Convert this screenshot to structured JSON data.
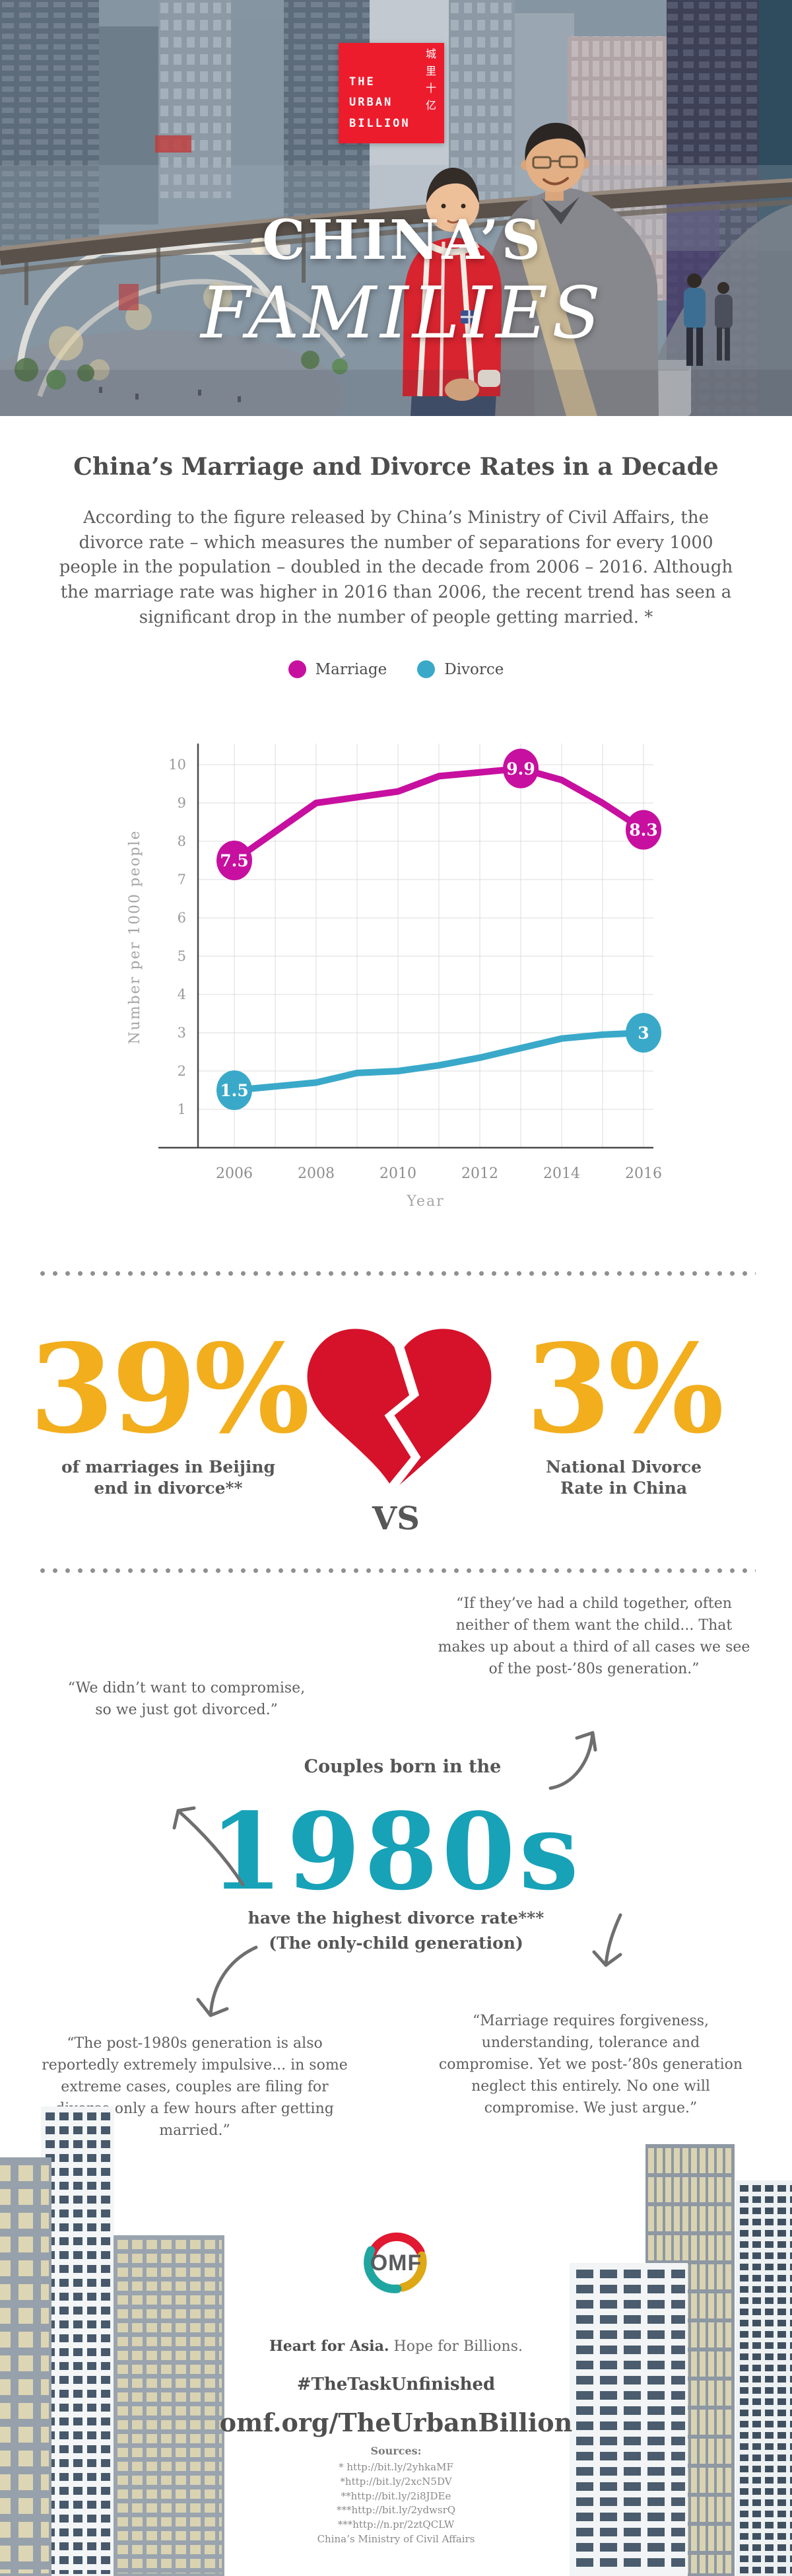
{
  "hero": {
    "logo": {
      "lines": [
        "THE",
        "URBAN",
        "BILLION"
      ],
      "chinese": "城里十亿",
      "bg_color": "#ed1c2d"
    },
    "title_line1": "CHINA’S",
    "title_line2": "FAMILIES"
  },
  "intro": {
    "heading": "China’s Marriage and Divorce Rates in a Decade",
    "paragraph": "According to the figure released by China’s Ministry of Civil Affairs, the divorce rate – which measures the number of separations for every 1000 people in the population – doubled in the decade from 2006 – 2016. Although the marriage rate was higher in 2016 than 2006, the recent trend has seen a significant drop in the number of people getting married. *"
  },
  "chart_data": {
    "type": "line",
    "title": "",
    "xlabel": "Year",
    "ylabel": "Number per 1000 people",
    "x": [
      2006,
      2007,
      2008,
      2009,
      2010,
      2011,
      2012,
      2013,
      2014,
      2015,
      2016
    ],
    "x_tick_labels": [
      "2006",
      "2008",
      "2010",
      "2012",
      "2014",
      "2016"
    ],
    "yticks": [
      1,
      2,
      3,
      4,
      5,
      6,
      7,
      8,
      9,
      10
    ],
    "ylim": [
      0,
      10.5
    ],
    "grid": true,
    "legend_position": "top",
    "series": [
      {
        "name": "Marriage",
        "color": "#c7109f",
        "values": [
          7.5,
          8.25,
          9.0,
          9.15,
          9.3,
          9.7,
          9.8,
          9.9,
          9.6,
          9.0,
          8.3
        ],
        "point_labels": [
          {
            "x": 2006,
            "value": 7.5,
            "label": "7.5"
          },
          {
            "x": 2013,
            "value": 9.9,
            "label": "9.9"
          },
          {
            "x": 2016,
            "value": 8.3,
            "label": "8.3"
          }
        ]
      },
      {
        "name": "Divorce",
        "color": "#3aa9c9",
        "values": [
          1.5,
          1.6,
          1.7,
          1.95,
          2.0,
          2.15,
          2.35,
          2.6,
          2.85,
          2.95,
          3.0
        ],
        "point_labels": [
          {
            "x": 2006,
            "value": 1.5,
            "label": "1.5"
          },
          {
            "x": 2016,
            "value": 3.0,
            "label": "3"
          }
        ]
      }
    ]
  },
  "stats": {
    "accent_color": "#f2ae1d",
    "heart_color": "#d6122b",
    "left": {
      "value": "39%",
      "label_line1": "of marriages in Beijing",
      "label_line2": "end in divorce**"
    },
    "vs": "VS",
    "right": {
      "value": "3%",
      "label_line1": "National Divorce",
      "label_line2": "Rate in China"
    }
  },
  "generation": {
    "quote_top_right": "“If they’ve had a child together, often neither of them want the child... That makes up about a third of all cases we see of the post-’80s generation.”",
    "quote_left": "“We didn’t want to compromise, so we just got divorced.”",
    "lead_in": "Couples born in the",
    "big_text": "1980s",
    "accent_color": "#17a2b8",
    "sub_line1": "have the highest divorce rate***",
    "sub_line2": "(The only-child generation)",
    "quote_bottom_left": "“The post-1980s generation is also reportedly extremely impulsive... in some extreme cases, couples are filing for divorce only a few hours after getting married.”",
    "quote_bottom_right": "“Marriage requires forgiveness, understanding, tolerance and compromise. Yet we post-’80s generation neglect this entirely. No one will compromise. We just argue.”"
  },
  "footer": {
    "logo_text": "OMF",
    "tagline_bold": "Heart for Asia.",
    "tagline_rest": " Hope for Billions.",
    "hashtag": "#TheTaskUnfinished",
    "url": "omf.org/TheUrbanBillion",
    "sources_heading": "Sources:",
    "sources": [
      "* http://bit.ly/2yhkaMF",
      "*http://bit.ly/2xcN5DV",
      "**http://bit.ly/2i8JDEe",
      "***http://bit.ly/2ydwsrQ",
      "***http://n.pr/2ztQCLW",
      "China’s Ministry of Civil Affairs"
    ]
  }
}
